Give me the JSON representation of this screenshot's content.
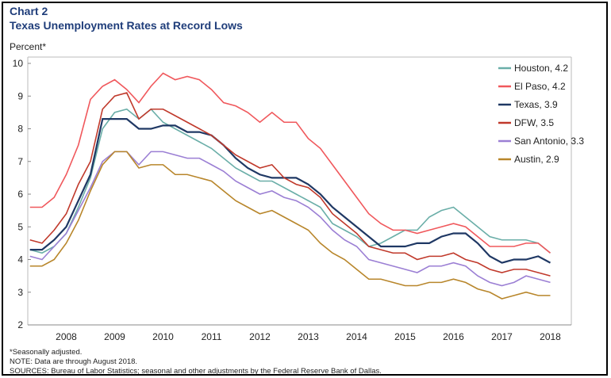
{
  "chart_data": {
    "type": "line",
    "title": "Chart 2",
    "subtitle": "Texas Unemployment Rates at Record Lows",
    "y_label": "Percent*",
    "notes": [
      "*Seasonally adjusted.",
      "NOTE: Data are through August 2018.",
      "SOURCES: Bureau of Labor Statistics; seasonal and other adjustments by the Federal Reserve Bank of Dallas."
    ],
    "categories": [
      null,
      null,
      null,
      "2008",
      null,
      null,
      null,
      "2009",
      null,
      null,
      null,
      "2010",
      null,
      null,
      null,
      "2011",
      null,
      null,
      null,
      "2012",
      null,
      null,
      null,
      "2013",
      null,
      null,
      null,
      "2014",
      null,
      null,
      null,
      "2015",
      null,
      null,
      null,
      "2016",
      null,
      null,
      null,
      "2017",
      null,
      null,
      null,
      "2018"
    ],
    "ylim": [
      2,
      10
    ],
    "yticks": [
      2,
      3,
      4,
      5,
      6,
      7,
      8,
      9,
      10
    ],
    "legend": "top-right",
    "series": [
      {
        "name": "Houston, 4.2",
        "color": "#6aaea8",
        "values": [
          4.3,
          4.2,
          4.4,
          4.8,
          5.6,
          6.5,
          8.0,
          8.5,
          8.6,
          8.3,
          8.6,
          8.2,
          8.0,
          7.8,
          7.6,
          7.4,
          7.1,
          6.8,
          6.6,
          6.4,
          6.4,
          6.2,
          6.0,
          5.8,
          5.6,
          5.1,
          4.9,
          4.7,
          4.4,
          4.5,
          4.7,
          4.9,
          4.9,
          5.3,
          5.5,
          5.6,
          5.3,
          5.0,
          4.7,
          4.6,
          4.6,
          4.6,
          4.5,
          4.2
        ]
      },
      {
        "name": "El Paso, 4.2",
        "color": "#f0585c",
        "values": [
          5.6,
          5.6,
          5.9,
          6.6,
          7.5,
          8.9,
          9.3,
          9.5,
          9.2,
          8.8,
          9.3,
          9.7,
          9.5,
          9.6,
          9.5,
          9.2,
          8.8,
          8.7,
          8.5,
          8.2,
          8.5,
          8.2,
          8.2,
          7.7,
          7.4,
          6.9,
          6.4,
          5.9,
          5.4,
          5.1,
          4.9,
          4.9,
          4.8,
          4.9,
          5.0,
          5.1,
          5.0,
          4.7,
          4.4,
          4.4,
          4.4,
          4.5,
          4.5,
          4.2
        ]
      },
      {
        "name": "Texas, 3.9",
        "color": "#1f3864",
        "values": [
          4.3,
          4.3,
          4.6,
          5.0,
          5.8,
          6.6,
          8.3,
          8.3,
          8.3,
          8.0,
          8.0,
          8.1,
          8.1,
          7.9,
          7.9,
          7.8,
          7.5,
          7.1,
          6.8,
          6.6,
          6.5,
          6.5,
          6.5,
          6.3,
          6.0,
          5.6,
          5.3,
          5.0,
          4.7,
          4.4,
          4.4,
          4.4,
          4.5,
          4.5,
          4.7,
          4.8,
          4.8,
          4.5,
          4.1,
          3.9,
          4.0,
          4.0,
          4.1,
          3.9
        ]
      },
      {
        "name": "DFW, 3.5",
        "color": "#c0392b",
        "values": [
          4.6,
          4.5,
          4.9,
          5.4,
          6.3,
          7.0,
          8.6,
          9.0,
          9.1,
          8.3,
          8.6,
          8.6,
          8.4,
          8.2,
          8.0,
          7.8,
          7.5,
          7.2,
          7.0,
          6.8,
          6.9,
          6.5,
          6.3,
          6.2,
          5.9,
          5.4,
          5.1,
          4.8,
          4.4,
          4.3,
          4.2,
          4.2,
          4.0,
          4.1,
          4.1,
          4.2,
          4.0,
          3.9,
          3.7,
          3.6,
          3.7,
          3.7,
          3.6,
          3.5
        ]
      },
      {
        "name": "San Antonio, 3.3",
        "color": "#9b7fd4",
        "values": [
          4.1,
          4.0,
          4.4,
          4.8,
          5.5,
          6.2,
          7.0,
          7.3,
          7.3,
          6.9,
          7.3,
          7.3,
          7.2,
          7.1,
          7.1,
          6.9,
          6.7,
          6.4,
          6.2,
          6.0,
          6.1,
          5.9,
          5.8,
          5.6,
          5.3,
          4.9,
          4.6,
          4.4,
          4.0,
          3.9,
          3.8,
          3.7,
          3.6,
          3.8,
          3.8,
          3.9,
          3.8,
          3.5,
          3.3,
          3.2,
          3.3,
          3.5,
          3.4,
          3.3
        ]
      },
      {
        "name": "Austin, 2.9",
        "color": "#b8862b",
        "values": [
          3.8,
          3.8,
          4.0,
          4.5,
          5.2,
          6.1,
          6.9,
          7.3,
          7.3,
          6.8,
          6.9,
          6.9,
          6.6,
          6.6,
          6.5,
          6.4,
          6.1,
          5.8,
          5.6,
          5.4,
          5.5,
          5.3,
          5.1,
          4.9,
          4.5,
          4.2,
          4.0,
          3.7,
          3.4,
          3.4,
          3.3,
          3.2,
          3.2,
          3.3,
          3.3,
          3.4,
          3.3,
          3.1,
          3.0,
          2.8,
          2.9,
          3.0,
          2.9,
          2.9
        ]
      }
    ]
  }
}
